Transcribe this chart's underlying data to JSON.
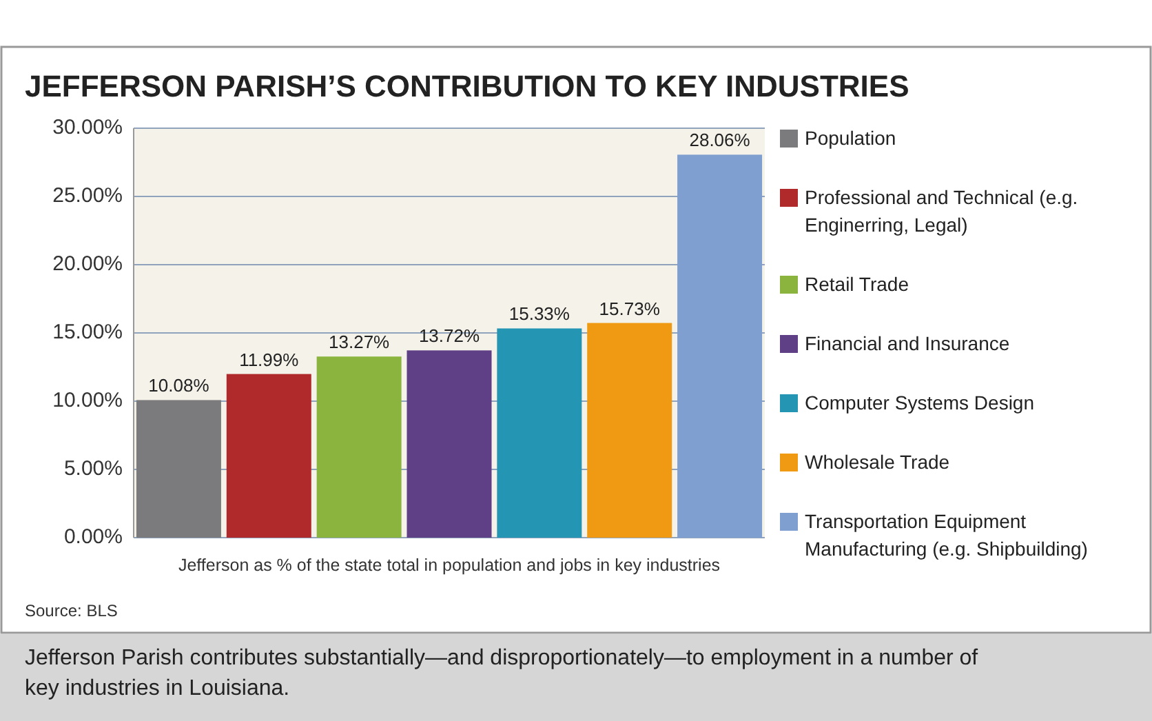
{
  "chart_data": {
    "type": "bar",
    "title": "JEFFERSON PARISH’S CONTRIBUTION TO KEY INDUSTRIES",
    "xlabel": "Jefferson as % of the state total  in population and jobs in key industries",
    "categories": [
      null,
      null,
      null,
      null,
      null,
      null,
      null
    ],
    "series": [
      {
        "name": "Population",
        "color": "#7b7b7d",
        "values": [
          10.08,
          null,
          null,
          null,
          null,
          null,
          null
        ],
        "value_labels": [
          "10.08%",
          null,
          null,
          null,
          null,
          null,
          null
        ]
      },
      {
        "name": "Professional and Technical (e.g. Enginerring, Legal)",
        "color": "#b02a2c",
        "values": [
          null,
          11.99,
          null,
          null,
          null,
          null,
          null
        ],
        "value_labels": [
          null,
          "11.99%",
          null,
          null,
          null,
          null,
          null
        ]
      },
      {
        "name": "Retail Trade",
        "color": "#8ab43e",
        "values": [
          null,
          null,
          13.27,
          null,
          null,
          null,
          null
        ],
        "value_labels": [
          null,
          null,
          "13.27%",
          null,
          null,
          null,
          null
        ]
      },
      {
        "name": "Financial and Insurance",
        "color": "#5f3f85",
        "values": [
          null,
          null,
          null,
          13.72,
          null,
          null,
          null
        ],
        "value_labels": [
          null,
          null,
          null,
          "13.72%",
          null,
          null,
          null
        ]
      },
      {
        "name": "Computer Systems Design",
        "color": "#2496b4",
        "values": [
          null,
          null,
          null,
          null,
          15.33,
          null,
          null
        ],
        "value_labels": [
          null,
          null,
          null,
          null,
          "15.33%",
          null,
          null
        ]
      },
      {
        "name": "Wholesale Trade",
        "color": "#f09a14",
        "values": [
          null,
          null,
          null,
          null,
          null,
          15.73,
          null
        ],
        "value_labels": [
          null,
          null,
          null,
          null,
          null,
          "15.73%",
          null
        ]
      },
      {
        "name": "Transportation Equipment Manufacturing (e.g. Shipbuilding)",
        "color": "#7f9fd0",
        "values": [
          null,
          null,
          null,
          null,
          null,
          null,
          28.06
        ],
        "value_labels": [
          null,
          null,
          null,
          null,
          null,
          null,
          "28.06%"
        ]
      }
    ],
    "ylim": [
      0,
      30
    ],
    "yticks": [
      {
        "value": 0,
        "label": "0.00%"
      },
      {
        "value": 5,
        "label": "5.00%"
      },
      {
        "value": 10,
        "label": "10.00%"
      },
      {
        "value": 15,
        "label": "15.00%"
      },
      {
        "value": 20,
        "label": "20.00%"
      },
      {
        "value": 25,
        "label": "25.00%"
      },
      {
        "value": 30,
        "label": "30.00%"
      }
    ],
    "grid": "y",
    "legend": "right",
    "annotations": [
      "Source: BLS",
      "Jefferson Parish contributes substantially—and disproportionately—to employment in a number of key industries in Louisiana."
    ]
  }
}
